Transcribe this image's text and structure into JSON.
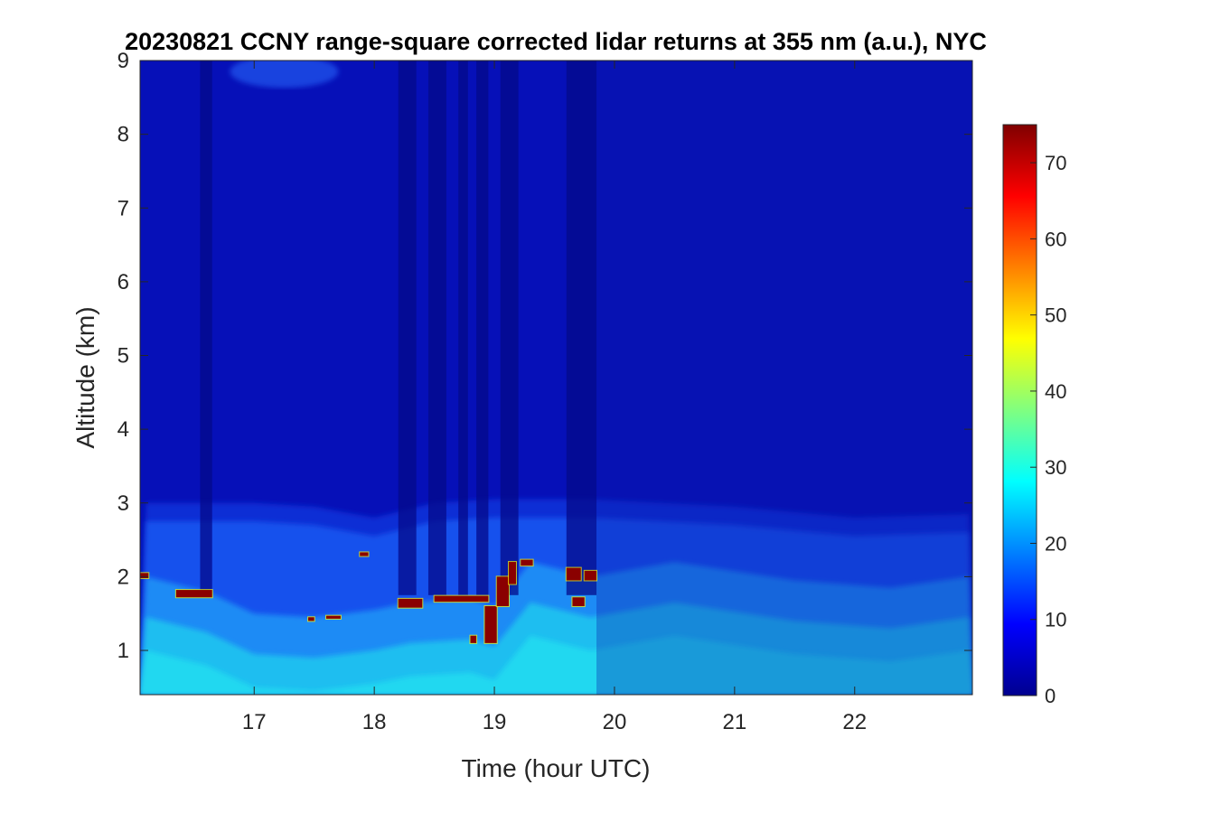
{
  "chart_data": {
    "type": "heatmap",
    "title": "20230821 CCNY range-square corrected lidar returns at 355 nm (a.u.), NYC",
    "xlabel": "Time (hour UTC)",
    "ylabel": "Altitude (km)",
    "xlim": [
      16.05,
      22.98
    ],
    "ylim": [
      0.4,
      9.0
    ],
    "xticks": [
      17,
      18,
      19,
      20,
      21,
      22
    ],
    "yticks": [
      1,
      2,
      3,
      4,
      5,
      6,
      7,
      8,
      9
    ],
    "colorbar": {
      "colormap": "jet",
      "clim": [
        0,
        75
      ],
      "ticks": [
        0,
        10,
        20,
        30,
        40,
        50,
        60,
        70
      ]
    },
    "features": {
      "boundary_layer_top_km": [
        {
          "t": 16.1,
          "z": 2.0
        },
        {
          "t": 16.6,
          "z": 1.8
        },
        {
          "t": 17.0,
          "z": 1.5
        },
        {
          "t": 17.5,
          "z": 1.45
        },
        {
          "t": 18.0,
          "z": 1.55
        },
        {
          "t": 18.3,
          "z": 1.65
        },
        {
          "t": 18.8,
          "z": 1.7
        },
        {
          "t": 19.0,
          "z": 1.6
        },
        {
          "t": 19.3,
          "z": 2.2
        },
        {
          "t": 19.8,
          "z": 2.0
        },
        {
          "t": 20.5,
          "z": 2.2
        },
        {
          "t": 21.5,
          "z": 1.95
        },
        {
          "t": 22.3,
          "z": 1.85
        },
        {
          "t": 22.95,
          "z": 2.0
        }
      ],
      "residual_layer_km": [
        {
          "t": 16.1,
          "z": 2.75
        },
        {
          "t": 17.0,
          "z": 2.75
        },
        {
          "t": 17.5,
          "z": 2.7
        },
        {
          "t": 18.0,
          "z": 2.55
        },
        {
          "t": 18.5,
          "z": 2.75
        },
        {
          "t": 19.0,
          "z": 2.8
        },
        {
          "t": 19.8,
          "z": 2.8
        },
        {
          "t": 21.0,
          "z": 2.7
        },
        {
          "t": 22.0,
          "z": 2.55
        },
        {
          "t": 22.95,
          "z": 2.6
        }
      ],
      "data_gap_change_hour": 19.85,
      "cloud_segments": [
        {
          "t0": 16.05,
          "t1": 16.12,
          "z0": 1.98,
          "z1": 2.05
        },
        {
          "t0": 16.35,
          "t1": 16.65,
          "z0": 1.72,
          "z1": 1.82
        },
        {
          "t0": 17.45,
          "t1": 17.5,
          "z0": 1.4,
          "z1": 1.45
        },
        {
          "t0": 17.6,
          "t1": 17.72,
          "z0": 1.43,
          "z1": 1.47
        },
        {
          "t0": 17.88,
          "t1": 17.95,
          "z0": 2.28,
          "z1": 2.33
        },
        {
          "t0": 18.2,
          "t1": 18.4,
          "z0": 1.58,
          "z1": 1.7
        },
        {
          "t0": 18.5,
          "t1": 18.95,
          "z0": 1.66,
          "z1": 1.74
        },
        {
          "t0": 18.8,
          "t1": 18.85,
          "z0": 1.1,
          "z1": 1.2
        },
        {
          "t0": 18.92,
          "t1": 19.02,
          "z0": 1.1,
          "z1": 1.6
        },
        {
          "t0": 19.02,
          "t1": 19.12,
          "z0": 1.6,
          "z1": 2.0
        },
        {
          "t0": 19.12,
          "t1": 19.18,
          "z0": 1.9,
          "z1": 2.2
        },
        {
          "t0": 19.22,
          "t1": 19.32,
          "z0": 2.15,
          "z1": 2.23
        },
        {
          "t0": 19.6,
          "t1": 19.72,
          "z0": 1.95,
          "z1": 2.12
        },
        {
          "t0": 19.65,
          "t1": 19.75,
          "z0": 1.6,
          "z1": 1.72
        },
        {
          "t0": 19.75,
          "t1": 19.85,
          "z0": 1.95,
          "z1": 2.08
        }
      ],
      "dark_column_intervals": [
        [
          16.55,
          16.65
        ],
        [
          18.2,
          18.35
        ],
        [
          18.45,
          18.6
        ],
        [
          18.7,
          18.78
        ],
        [
          18.85,
          18.95
        ],
        [
          19.05,
          19.2
        ],
        [
          19.6,
          19.85
        ]
      ]
    }
  },
  "colors": {
    "jet": [
      "#00008f",
      "#0000ff",
      "#0080ff",
      "#00ffff",
      "#80ff80",
      "#ffff00",
      "#ff8000",
      "#ff0000",
      "#800000"
    ]
  }
}
